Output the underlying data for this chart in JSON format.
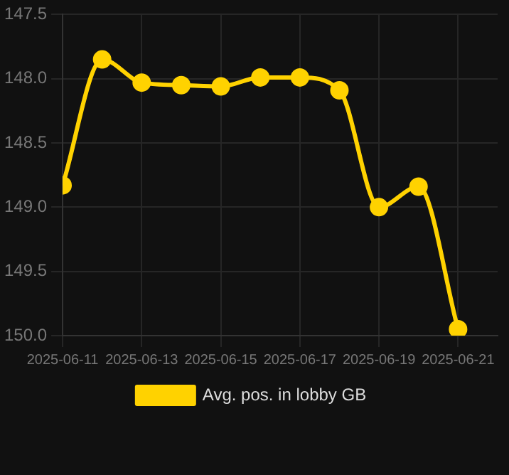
{
  "chart_data": {
    "type": "line",
    "x": [
      "2025-06-11",
      "2025-06-12",
      "2025-06-13",
      "2025-06-14",
      "2025-06-15",
      "2025-06-16",
      "2025-06-17",
      "2025-06-18",
      "2025-06-19",
      "2025-06-20",
      "2025-06-21"
    ],
    "series": [
      {
        "name": "Avg. pos. in lobby GB",
        "color": "#ffd200",
        "values": [
          148.83,
          147.85,
          148.03,
          148.05,
          148.06,
          147.99,
          147.99,
          148.09,
          149.0,
          148.84,
          149.95
        ]
      }
    ],
    "xlim": [
      "2025-06-11",
      "2025-06-22"
    ],
    "xticks": [
      "2025-06-11",
      "2025-06-13",
      "2025-06-15",
      "2025-06-17",
      "2025-06-19",
      "2025-06-21"
    ],
    "ylim": [
      150.0,
      147.5
    ],
    "yticks": [
      {
        "value": 147.5,
        "label": "147.5"
      },
      {
        "value": 148.0,
        "label": "148.0"
      },
      {
        "value": 148.5,
        "label": "148.5"
      },
      {
        "value": 149.0,
        "label": "149.0"
      },
      {
        "value": 149.5,
        "label": "149.5"
      },
      {
        "value": 150.0,
        "label": "150.0"
      }
    ],
    "grid": true,
    "legend": "bottom",
    "marker": "circle",
    "line_style": "solid"
  }
}
